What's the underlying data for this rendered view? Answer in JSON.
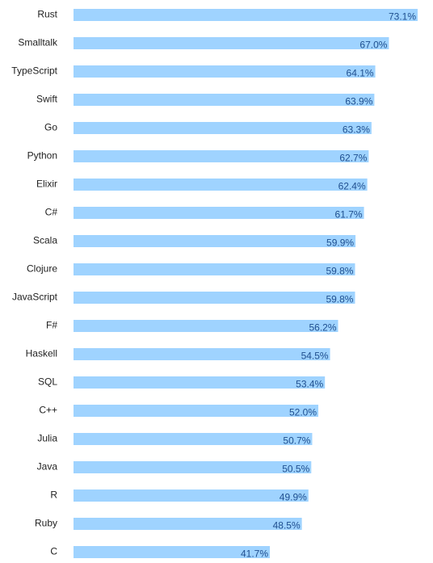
{
  "chart_data": {
    "type": "bar",
    "orientation": "horizontal",
    "title": "",
    "xlabel": "",
    "ylabel": "",
    "grid": false,
    "categories": [
      "Rust",
      "Smalltalk",
      "TypeScript",
      "Swift",
      "Go",
      "Python",
      "Elixir",
      "C#",
      "Scala",
      "Clojure",
      "JavaScript",
      "F#",
      "Haskell",
      "SQL",
      "C++",
      "Julia",
      "Java",
      "R",
      "Ruby",
      "C"
    ],
    "values": [
      73.1,
      67.0,
      64.1,
      63.9,
      63.3,
      62.7,
      62.4,
      61.7,
      59.9,
      59.8,
      59.8,
      56.2,
      54.5,
      53.4,
      52.0,
      50.7,
      50.5,
      49.9,
      48.5,
      41.7
    ],
    "value_labels": [
      "73.1%",
      "67.0%",
      "64.1%",
      "63.9%",
      "63.3%",
      "62.7%",
      "62.4%",
      "61.7%",
      "59.9%",
      "59.8%",
      "59.8%",
      "56.2%",
      "54.5%",
      "53.4%",
      "52.0%",
      "50.7%",
      "50.5%",
      "49.9%",
      "48.5%",
      "41.7%"
    ],
    "xlim": [
      0,
      80
    ],
    "colors": {
      "bar": "#9fd3ff",
      "label": "#1f4f8f",
      "category_text": "#222222"
    }
  }
}
